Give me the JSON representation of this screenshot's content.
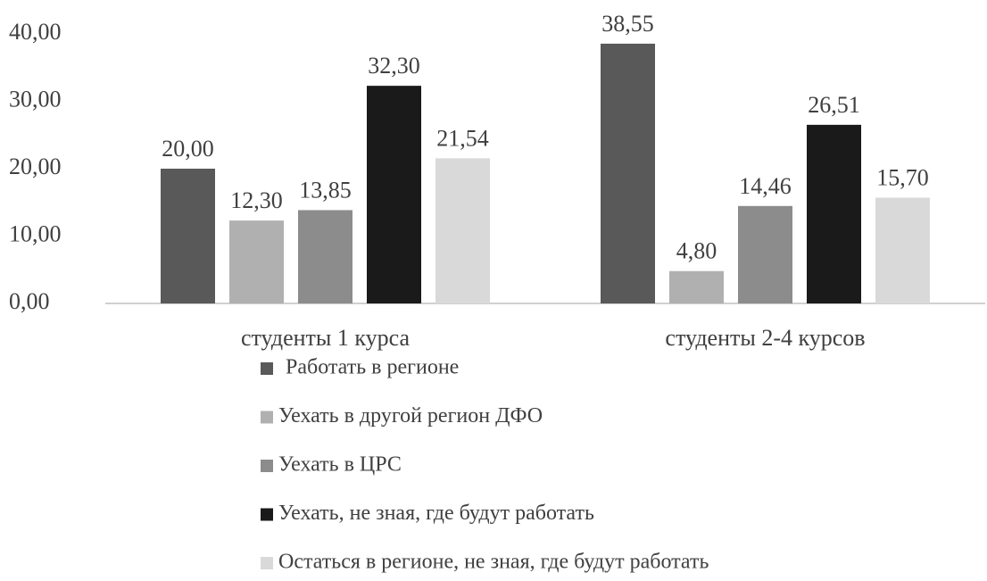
{
  "chart_data": {
    "type": "bar",
    "categories": [
      "студенты 1 курса",
      "студенты 2-4 курсов"
    ],
    "series": [
      {
        "name": "Работать в регионе",
        "color": "#595959",
        "values": [
          20.0,
          38.55
        ],
        "value_labels": [
          "20,00",
          "38,55"
        ]
      },
      {
        "name": "Уехать в другой регион ДФО",
        "color": "#b0b0b0",
        "values": [
          12.3,
          4.8
        ],
        "value_labels": [
          "12,30",
          "4,80"
        ]
      },
      {
        "name": "Уехать в ЦРС",
        "color": "#8c8c8c",
        "values": [
          13.85,
          14.46
        ],
        "value_labels": [
          "13,85",
          "14,46"
        ]
      },
      {
        "name": "Уехать, не зная, где будут работать",
        "color": "#1a1a1a",
        "values": [
          32.3,
          26.51
        ],
        "value_labels": [
          "32,30",
          "26,51"
        ]
      },
      {
        "name": "Остаться в регионе, не зная, где будут работать",
        "color": "#d9d9d9",
        "values": [
          21.54,
          15.7
        ],
        "value_labels": [
          "21,54",
          "15,70"
        ]
      }
    ],
    "ylim": [
      0,
      40
    ],
    "yticks": [
      {
        "value": 0,
        "label": "0,00"
      },
      {
        "value": 10,
        "label": "10,00"
      },
      {
        "value": 20,
        "label": "20,00"
      },
      {
        "value": 30,
        "label": "30,00"
      },
      {
        "value": 40,
        "label": "40,00"
      }
    ],
    "legend": "bottom"
  }
}
